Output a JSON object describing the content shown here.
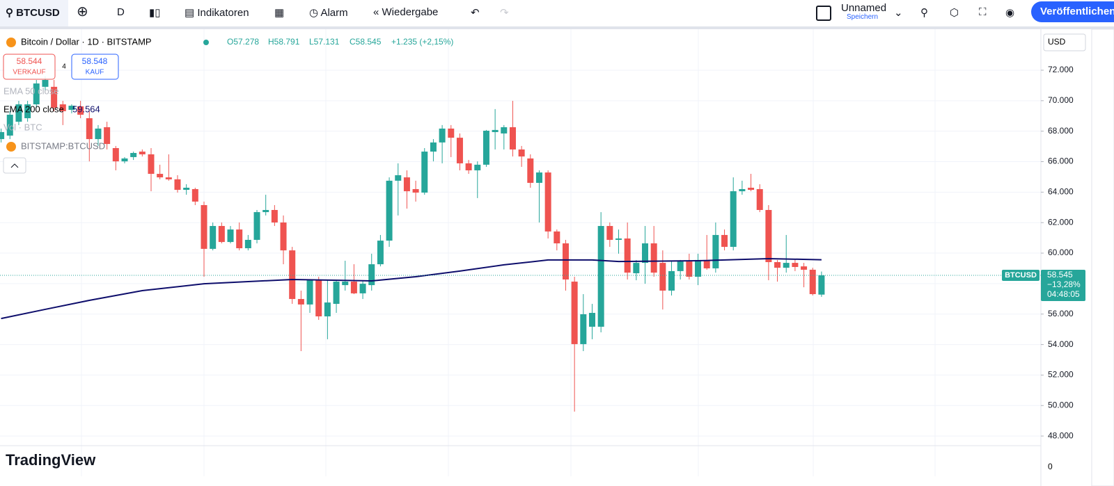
{
  "toolbar": {
    "symbol": "BTCUSD",
    "interval": "D",
    "indicators": "Indikatoren",
    "alarm": "Alarm",
    "replay": "Wiedergabe",
    "layout_name": "Unnamed",
    "save": "Speichern",
    "publish": "Veröffentlichen"
  },
  "legend": {
    "title": "Bitcoin / Dollar · 1D · BITSTAMP",
    "open": "O57.278",
    "high": "H58.791",
    "low": "L57.131",
    "close": "C58.545",
    "change": "+1.235 (+2,15%)",
    "sell_price": "58.544",
    "sell": "VERKAUF",
    "spread": "4",
    "buy_price": "58.548",
    "buy": "KAUF",
    "indicators": [
      "EMA 50 close",
      "EMA 200 close",
      "Vol · BTC",
      "BITSTAMP:BTCUSD"
    ]
  },
  "currency": "USD",
  "volume_scale_label": "0",
  "watermark": "TradingView",
  "chart_data": {
    "type": "candlestick",
    "series": [
      {
        "name": "BTCUSD",
        "up_color": "#26a69a",
        "down_color": "#ef5350",
        "open": [
          67480,
          67710,
          68620,
          68850,
          69760,
          70910,
          70910,
          69760,
          69400,
          69630,
          68850,
          67480,
          68260,
          66890,
          66020,
          66300,
          66660,
          66480,
          65200,
          64970,
          64840,
          64150,
          64200,
          63150,
          60280,
          61780,
          60730,
          61550,
          60320,
          60870,
          62690,
          62830,
          62010,
          60180,
          56990,
          56630,
          58220,
          55850,
          56670,
          57900,
          58130,
          57360,
          57900,
          59270,
          60820,
          64750,
          64970,
          64200,
          63970,
          66660,
          67260,
          68170,
          67570,
          65890,
          65430,
          65800,
          67940,
          67850,
          68260,
          66800,
          66210,
          64610,
          65290,
          61420,
          60640,
          58130,
          54030,
          55170,
          55170,
          61780,
          60870,
          60960,
          58680,
          59360,
          60640,
          59360,
          57540,
          58820,
          59450,
          58450,
          59500,
          59000,
          61190,
          60410,
          64060,
          64290,
          64200,
          62830,
          59410,
          59040,
          59360,
          59130,
          58910,
          57278
        ],
        "high": [
          68170,
          69310,
          69990,
          69990,
          71360,
          71590,
          71360,
          69990,
          69760,
          69990,
          69310,
          68400,
          68620,
          67030,
          66300,
          66660,
          66800,
          66890,
          65800,
          66480,
          65110,
          64520,
          64290,
          63380,
          62010,
          62010,
          61780,
          62010,
          61190,
          62830,
          63830,
          63150,
          62470,
          60410,
          57540,
          58270,
          58450,
          58270,
          58220,
          59500,
          59270,
          58220,
          59960,
          61190,
          64970,
          65890,
          65430,
          64750,
          66890,
          67480,
          68400,
          68400,
          67850,
          66110,
          66020,
          68080,
          69450,
          68400,
          69990,
          67030,
          66480,
          65430,
          65430,
          61550,
          60870,
          58450,
          57310,
          56670,
          62690,
          62010,
          61550,
          62010,
          59550,
          61780,
          61780,
          60180,
          59500,
          59550,
          59960,
          59960,
          61190,
          62010,
          61550,
          64970,
          64750,
          65200,
          64520,
          63150,
          59550,
          61190,
          59550,
          59360,
          59040,
          58791
        ],
        "low": [
          67260,
          67480,
          68400,
          68620,
          69540,
          70680,
          69310,
          68400,
          69170,
          68850,
          66020,
          67030,
          66800,
          65430,
          65890,
          66110,
          66340,
          64060,
          64840,
          64750,
          63970,
          63830,
          63150,
          58450,
          60180,
          60640,
          60640,
          60180,
          60180,
          60640,
          62470,
          61780,
          59270,
          56670,
          53570,
          56080,
          55620,
          54350,
          56080,
          57540,
          57310,
          56990,
          57540,
          59130,
          60410,
          62470,
          62920,
          63380,
          63830,
          66020,
          65890,
          66300,
          65430,
          65200,
          63610,
          65660,
          66800,
          66800,
          66340,
          65660,
          64290,
          62010,
          60960,
          60180,
          57540,
          49600,
          53570,
          54350,
          54800,
          60410,
          59960,
          58270,
          58220,
          57990,
          58450,
          56300,
          57220,
          58270,
          58270,
          57900,
          58910,
          58720,
          60180,
          60180,
          63830,
          64060,
          62690,
          58220,
          58130,
          58720,
          58820,
          57760,
          57220,
          57131
        ],
        "close": [
          67940,
          69080,
          69760,
          69760,
          71130,
          71360,
          69540,
          69310,
          69670,
          69080,
          67480,
          68170,
          67160,
          66020,
          66210,
          66570,
          66480,
          65200,
          64970,
          64840,
          64150,
          64290,
          63380,
          60280,
          61780,
          60730,
          61550,
          60320,
          60870,
          62690,
          62830,
          62010,
          60180,
          56990,
          56630,
          58220,
          55850,
          56760,
          58130,
          58130,
          57360,
          57990,
          59270,
          60820,
          64750,
          65110,
          64060,
          63970,
          66660,
          67260,
          68170,
          67570,
          65890,
          65430,
          65800,
          68030,
          68080,
          68260,
          66800,
          66340,
          64610,
          65290,
          61420,
          60640,
          58270,
          54030,
          55990,
          56080,
          61780,
          60870,
          60960,
          58720,
          59360,
          60640,
          58720,
          57540,
          58820,
          59450,
          58450,
          59550,
          59000,
          61190,
          60410,
          64060,
          64200,
          64150,
          62830,
          59410,
          59040,
          59360,
          59090,
          58910,
          57310,
          58545
        ]
      }
    ],
    "ema": {
      "name": "EMA 200 close",
      "color": "#0d0d6b",
      "value_label": "59.564",
      "x": [
        0,
        5,
        10,
        16,
        23,
        33,
        42,
        47,
        52,
        57,
        62,
        67,
        70,
        79,
        87,
        93
      ],
      "values": [
        55710,
        56310,
        56900,
        57540,
        57990,
        58270,
        58180,
        58450,
        58820,
        59230,
        59550,
        59550,
        59450,
        59500,
        59640,
        59564
      ]
    },
    "last_price": {
      "symbol": "BTCUSD",
      "label": "58.545",
      "change": "−13,28%",
      "countdown": "04:48:05"
    },
    "ylim": [
      45360,
      74690
    ],
    "yticks": [
      {
        "value": 72000,
        "label": "72.000"
      },
      {
        "value": 70000,
        "label": "70.000"
      },
      {
        "value": 68000,
        "label": "68.000"
      },
      {
        "value": 66000,
        "label": "66.000"
      },
      {
        "value": 64000,
        "label": "64.000"
      },
      {
        "value": 62000,
        "label": "62.000"
      },
      {
        "value": 60000,
        "label": "60.000"
      },
      {
        "value": 58000,
        "label": "58.000"
      },
      {
        "value": 56000,
        "label": "56.000"
      },
      {
        "value": 54000,
        "label": "54.000"
      },
      {
        "value": 52000,
        "label": "52.000"
      },
      {
        "value": 50000,
        "label": "50.000"
      },
      {
        "value": 48000,
        "label": "48.000"
      }
    ],
    "grid": true
  }
}
